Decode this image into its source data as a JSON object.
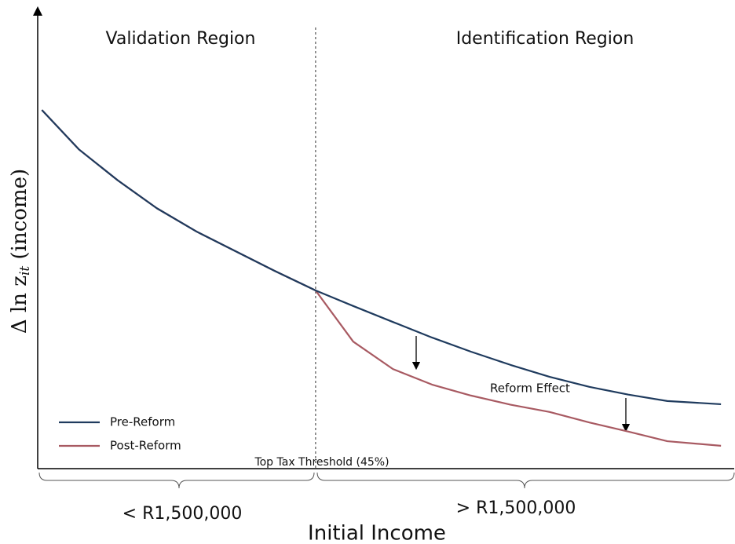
{
  "chart_data": {
    "type": "line",
    "region_labels": [
      "Validation Region",
      "Identification Region"
    ],
    "threshold_label": "Top Tax Threshold (45%)",
    "threshold_x": 39.9,
    "annotation": "Reform Effect",
    "range_labels": [
      "< R1,500,000",
      "> R1,500,000"
    ],
    "x_label": "Initial Income",
    "y_label": {
      "prefix": "Δ ln z",
      "subscript": "it",
      "suffix": " (income)"
    },
    "xlim": [
      0,
      100
    ],
    "ylim": [
      0,
      100
    ],
    "legend": "lower left",
    "x": [
      0.6,
      5.9,
      11.5,
      17.1,
      22.8,
      28.4,
      34.0,
      39.9,
      45.3,
      51.0,
      56.6,
      62.2,
      67.9,
      73.5,
      79.2,
      84.8,
      90.4,
      98.1
    ],
    "series": [
      {
        "name": "Pre-Reform",
        "color": "#1f3b5e",
        "values": [
          78.5,
          69.9,
          63.1,
          57.0,
          51.9,
          47.6,
          43.3,
          39.0,
          35.6,
          32.1,
          28.7,
          25.6,
          22.7,
          20.1,
          17.9,
          16.2,
          14.8,
          14.1
        ]
      },
      {
        "name": "Post-Reform",
        "color": "#a85a62",
        "values": [
          78.5,
          69.9,
          63.1,
          57.0,
          51.9,
          47.6,
          43.3,
          39.0,
          27.8,
          21.8,
          18.4,
          16.0,
          14.0,
          12.4,
          10.1,
          8.1,
          6.0,
          5.0
        ]
      }
    ]
  }
}
